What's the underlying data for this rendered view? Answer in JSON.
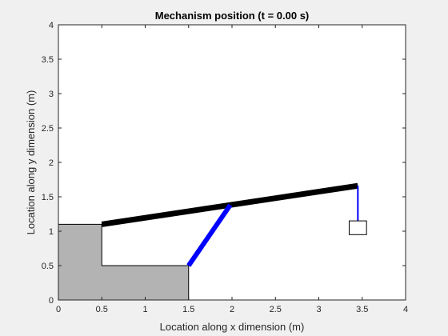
{
  "chart_data": {
    "type": "line",
    "title": "Mechanism position (t = 0.00 s)",
    "xlabel": "Location along x dimension (m)",
    "ylabel": "Location along y dimension (m)",
    "xlim": [
      0,
      4
    ],
    "ylim": [
      0,
      4
    ],
    "xticks": [
      "0",
      "0.5",
      "1",
      "1.5",
      "2",
      "2.5",
      "3",
      "3.5",
      "4"
    ],
    "yticks": [
      "0",
      "0.5",
      "1",
      "1.5",
      "2",
      "2.5",
      "3",
      "3.5",
      "4"
    ],
    "grid": false,
    "ground": {
      "fill": "#b3b3b3",
      "points": [
        [
          0,
          0
        ],
        [
          0,
          1.1
        ],
        [
          0.5,
          1.1
        ],
        [
          0.5,
          0.5
        ],
        [
          1.5,
          0.5
        ],
        [
          1.5,
          0
        ]
      ]
    },
    "series": [
      {
        "color": "#000000",
        "points": [
          [
            0.5,
            1.1
          ],
          [
            3.45,
            1.66
          ]
        ]
      },
      {
        "color": "#0000ff",
        "points": [
          [
            1.5,
            0.5
          ],
          [
            1.98,
            1.38
          ]
        ]
      },
      {
        "color": "#0000ff",
        "points": [
          [
            3.45,
            1.66
          ],
          [
            3.45,
            1.15
          ]
        ]
      }
    ],
    "mass_box": {
      "x": [
        3.35,
        3.55
      ],
      "y": [
        0.95,
        1.15
      ],
      "fill": "#ffffff",
      "stroke": "#000000"
    }
  }
}
